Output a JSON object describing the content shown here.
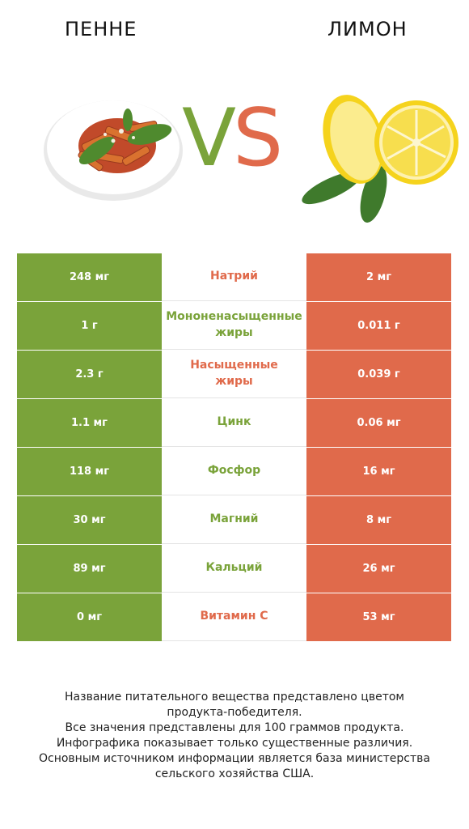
{
  "header": {
    "left_title": "ПЕННЕ",
    "right_title": "ЛИМОН",
    "vs_v": "V",
    "vs_s": "S",
    "left_image": "penne-pasta-plate",
    "right_image": "lemon-halves-with-leaves"
  },
  "colors": {
    "left_winner": "#7aa33a",
    "right_winner": "#e06a4b"
  },
  "rows": [
    {
      "left": "248 мг",
      "name": "Натрий",
      "right": "2 мг",
      "winner": "right"
    },
    {
      "left": "1 г",
      "name": "Мононенасыщенные жиры",
      "right": "0.011 г",
      "winner": "left"
    },
    {
      "left": "2.3 г",
      "name": "Насыщенные жиры",
      "right": "0.039 г",
      "winner": "right"
    },
    {
      "left": "1.1 мг",
      "name": "Цинк",
      "right": "0.06 мг",
      "winner": "left"
    },
    {
      "left": "118 мг",
      "name": "Фосфор",
      "right": "16 мг",
      "winner": "left"
    },
    {
      "left": "30 мг",
      "name": "Магний",
      "right": "8 мг",
      "winner": "left"
    },
    {
      "left": "89 мг",
      "name": "Кальций",
      "right": "26 мг",
      "winner": "left"
    },
    {
      "left": "0 мг",
      "name": "Витамин C",
      "right": "53 мг",
      "winner": "right"
    }
  ],
  "footnote": {
    "line1": "Название питательного вещества представлено цветом продукта-победителя.",
    "line2": "Все значения представлены для 100 граммов продукта.",
    "line3": "Инфографика показывает только существенные различия.",
    "line4": "Основным источником информации является база министерства сельского хозяйства США."
  }
}
